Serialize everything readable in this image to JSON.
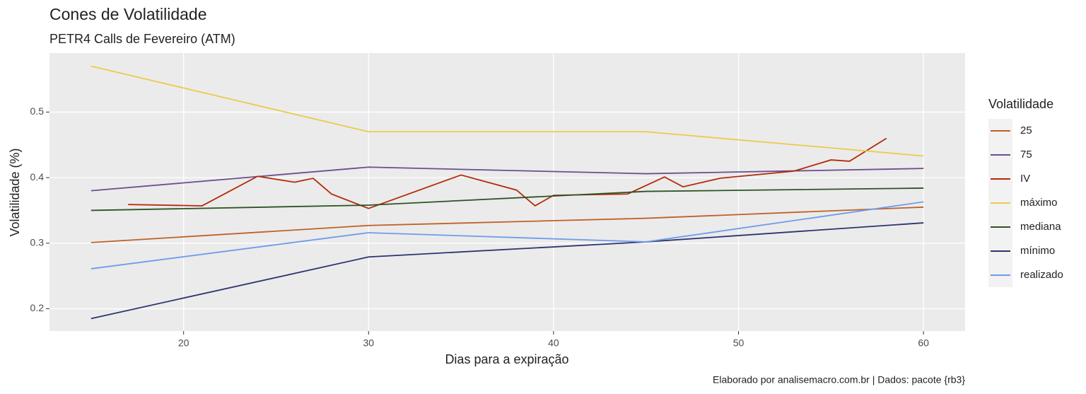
{
  "chart_data": {
    "type": "line",
    "title": "Cones de Volatilidade",
    "subtitle": "PETR4 Calls de Fevereiro (ATM)",
    "x_label": "Dias para a expiração",
    "y_label": "Volatilidade (%)",
    "caption": "Elaborado por analisemacro.com.br | Dados: pacote {rb3}",
    "legend_title": "Volatilidade",
    "legend_position": "right",
    "grid": true,
    "x": [
      15,
      30,
      45,
      60
    ],
    "xlim": [
      12.75,
      62.25
    ],
    "xticks": [
      20,
      30,
      40,
      50,
      60
    ],
    "ylim": [
      0.166,
      0.59
    ],
    "yticks": [
      0.2,
      0.3,
      0.4,
      0.5
    ],
    "series": [
      {
        "name": "25",
        "color": "#bf6128",
        "values": [
          0.301,
          0.327,
          0.338,
          0.355
        ]
      },
      {
        "name": "75",
        "color": "#6b4f8a",
        "values": [
          0.38,
          0.416,
          0.406,
          0.414
        ]
      },
      {
        "name": "IV",
        "color": "#b52a0b",
        "x": [
          17,
          21,
          24,
          26,
          27,
          28,
          30,
          35,
          38,
          39,
          40,
          44,
          46,
          47,
          49,
          53,
          55,
          56,
          58
        ],
        "values": [
          0.359,
          0.357,
          0.402,
          0.393,
          0.399,
          0.375,
          0.353,
          0.404,
          0.381,
          0.357,
          0.373,
          0.375,
          0.401,
          0.386,
          0.399,
          0.41,
          0.427,
          0.425,
          0.46
        ]
      },
      {
        "name": "máximo",
        "color": "#ecca4c",
        "values": [
          0.57,
          0.47,
          0.47,
          0.433
        ]
      },
      {
        "name": "mediana",
        "color": "#2b5424",
        "values": [
          0.35,
          0.358,
          0.379,
          0.384
        ]
      },
      {
        "name": "mínimo",
        "color": "#2e3370",
        "values": [
          0.185,
          0.279,
          0.302,
          0.331
        ]
      },
      {
        "name": "realizado",
        "color": "#6e9ceb",
        "values": [
          0.261,
          0.316,
          0.302,
          0.363
        ]
      }
    ]
  }
}
